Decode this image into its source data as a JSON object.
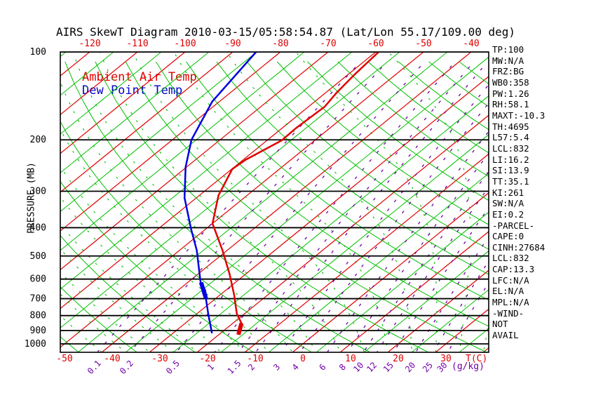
{
  "title": "AIRS SkewT Diagram 2010-03-15/05:58:54.87 (Lat/Lon 55.17/109.00 deg)",
  "legend": {
    "temp": "Ambient Air Temp",
    "dew": "Dew Point Temp"
  },
  "axes": {
    "pressure_label": "PRESSURE (MB)",
    "pressure_ticks": [
      100,
      200,
      300,
      400,
      500,
      600,
      700,
      800,
      900,
      1000
    ],
    "top_temp_ticks": [
      -120,
      -110,
      -100,
      -90,
      -80,
      -70,
      -60,
      -50,
      -40
    ],
    "bottom_temp_ticks": [
      -50,
      -40,
      -30,
      -20,
      -10,
      0,
      10,
      20,
      30
    ],
    "temp_unit": "T(C)",
    "mixing_unit": "(g/kg)",
    "mixing_ratio_ticks": [
      0.1,
      0.2,
      0.5,
      1,
      1.5,
      2,
      3,
      4,
      6,
      8,
      10,
      12,
      15,
      20,
      25,
      30
    ]
  },
  "stats": [
    "TP:100",
    "MW:N/A",
    "FRZ:BG",
    "WB0:358",
    "PW:1.26",
    "RH:58.1",
    "MAXT:-10.3",
    "TH:4695",
    "L57:5.4",
    "LCL:832",
    "LI:16.2",
    "SI:13.9",
    "TT:35.1",
    "KI:261",
    "SW:N/A",
    "EI:0.2",
    "-PARCEL-",
    "CAPE:0",
    "CINH:27684",
    "LCL:832",
    "CAP:13.3",
    "LFC:N/A",
    "EL:N/A",
    "MPL:N/A",
    "-WIND-",
    "NOT",
    "AVAIL"
  ],
  "colors": {
    "isotherm_major": "#e00000",
    "isotherm_minor": "#00c000",
    "dry_adiabat": "#00c000",
    "moist_adiabat": "#00c000",
    "mixing_ratio": "#7000a8",
    "pressure_line": "#000000",
    "temp_curve": "#e00000",
    "dew_curve": "#0000e0",
    "top_tick_label": "#e00000",
    "bottom_tick_label": "#e00000",
    "mixing_label": "#7000a8"
  },
  "chart_data": {
    "type": "line",
    "title": "AIRS SkewT Diagram 2010-03-15/05:58:54.87 (Lat/Lon 55.17/109.00 deg)",
    "xlabel": "T(C)",
    "ylabel": "PRESSURE (MB)",
    "y_scale": "log",
    "pressure_range_mb": [
      100,
      1070
    ],
    "temp_range_bottom_c": [
      -52,
      39
    ],
    "skew_note": "isotherms slant up-right; temperature in C, pressure in MB",
    "series": [
      {
        "name": "Ambient Air Temp",
        "color": "#e00000",
        "points_p_t": [
          [
            100,
            -59.4
          ],
          [
            120,
            -58.6
          ],
          [
            138,
            -57.7
          ],
          [
            154,
            -56.6
          ],
          [
            182,
            -57.1
          ],
          [
            201,
            -56.9
          ],
          [
            234,
            -59.5
          ],
          [
            252,
            -59.9
          ],
          [
            310,
            -56.0
          ],
          [
            387,
            -50.0
          ],
          [
            478,
            -41.0
          ],
          [
            575,
            -33.5
          ],
          [
            677,
            -27.2
          ],
          [
            789,
            -21.6
          ],
          [
            850,
            -18.2
          ],
          [
            930,
            -15.9
          ]
        ],
        "thick_bar_p_t": [
          [
            850,
            -18.2
          ],
          [
            930,
            -15.9
          ]
        ]
      },
      {
        "name": "Dew Point Temp",
        "color": "#0000e0",
        "points_p_t": [
          [
            100,
            -85.1
          ],
          [
            148,
            -81.5
          ],
          [
            200,
            -76.0
          ],
          [
            248,
            -70.2
          ],
          [
            316,
            -62.5
          ],
          [
            405,
            -53.0
          ],
          [
            478,
            -46.4
          ],
          [
            616,
            -37.3
          ],
          [
            657,
            -34.2
          ],
          [
            700,
            -32.0
          ],
          [
            789,
            -27.6
          ],
          [
            920,
            -21.8
          ]
        ],
        "thick_bar_p_t": [
          [
            616,
            -37.2
          ],
          [
            698,
            -32.1
          ]
        ]
      }
    ],
    "background": {
      "isotherms_c": {
        "min": -130,
        "max": 40,
        "step": 5,
        "major_every": 10
      },
      "dry_adiabats_theta_k": {
        "min": 212,
        "max": 476,
        "step": 12
      },
      "moist_adiabats_surface_c": {
        "min": -40,
        "max": 45,
        "step": 5
      },
      "mixing_ratio_lines_g_kg": [
        0.1,
        0.2,
        0.5,
        1,
        1.5,
        2,
        3,
        4,
        6,
        8,
        10,
        12,
        15,
        20,
        25,
        30
      ],
      "pressure_lines_mb": [
        100,
        200,
        300,
        400,
        500,
        600,
        700,
        800,
        900,
        1000
      ]
    }
  }
}
